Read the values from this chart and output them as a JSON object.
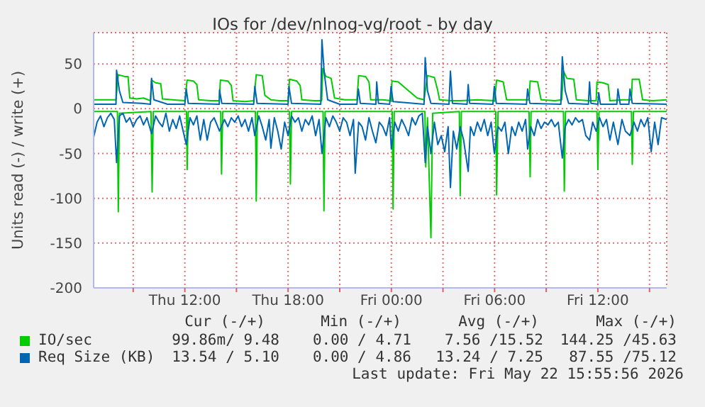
{
  "chart_data": {
    "type": "line",
    "title": "IOs for /dev/nlnog-vg/root - by day",
    "ylabel": "Units read (-) / write (+)",
    "xlim": [
      "2026-05-21T06:42",
      "2026-05-22T16:00"
    ],
    "xticks": [
      {
        "value": "2026-05-21T09:00",
        "label": null
      },
      {
        "value": "2026-05-21T12:00",
        "label": "Thu 12:00"
      },
      {
        "value": "2026-05-21T15:00",
        "label": null
      },
      {
        "value": "2026-05-21T18:00",
        "label": "Thu 18:00"
      },
      {
        "value": "2026-05-21T21:00",
        "label": null
      },
      {
        "value": "2026-05-22T00:00",
        "label": "Fri 00:00"
      },
      {
        "value": "2026-05-22T03:00",
        "label": null
      },
      {
        "value": "2026-05-22T06:00",
        "label": "Fri 06:00"
      },
      {
        "value": "2026-05-22T09:00",
        "label": null
      },
      {
        "value": "2026-05-22T12:00",
        "label": "Fri 12:00"
      },
      {
        "value": "2026-05-22T15:00",
        "label": null
      }
    ],
    "ylim": [
      -200,
      85
    ],
    "yticks": [
      -200,
      -150,
      -100,
      -50,
      0,
      50
    ],
    "grid": true,
    "legend": "bottom",
    "series": [
      {
        "name": "IO/sec",
        "color": "#00cc00",
        "x": [
          "2026-05-21T06:42",
          "2026-05-21T07:30",
          "2026-05-21T08:00",
          "2026-05-21T08:08",
          "2026-05-21T08:30",
          "2026-05-21T08:42",
          "2026-05-21T08:48",
          "2026-05-21T09:12",
          "2026-05-21T09:36",
          "2026-05-21T10:00",
          "2026-05-21T10:04",
          "2026-05-21T10:18",
          "2026-05-21T10:36",
          "2026-05-21T10:42",
          "2026-05-21T11:18",
          "2026-05-21T12:00",
          "2026-05-21T12:08",
          "2026-05-21T12:30",
          "2026-05-21T12:42",
          "2026-05-21T12:48",
          "2026-05-21T13:30",
          "2026-05-21T14:00",
          "2026-05-21T14:04",
          "2026-05-21T14:30",
          "2026-05-21T14:42",
          "2026-05-21T14:48",
          "2026-05-21T15:30",
          "2026-05-21T16:00",
          "2026-05-21T16:09",
          "2026-05-21T16:30",
          "2026-05-21T16:39",
          "2026-05-21T17:00",
          "2026-05-21T17:30",
          "2026-05-21T18:00",
          "2026-05-21T18:05",
          "2026-05-21T18:30",
          "2026-05-21T18:42",
          "2026-05-21T18:48",
          "2026-05-21T19:30",
          "2026-05-21T19:57",
          "2026-05-21T20:01",
          "2026-05-21T20:12",
          "2026-05-21T20:30",
          "2026-05-21T20:42",
          "2026-05-21T21:18",
          "2026-05-21T22:00",
          "2026-05-21T22:06",
          "2026-05-21T22:30",
          "2026-05-21T22:42",
          "2026-05-21T22:48",
          "2026-05-21T23:30",
          "2026-05-22T00:00",
          "2026-05-22T00:02",
          "2026-05-22T00:24",
          "2026-05-22T01:00",
          "2026-05-22T01:30",
          "2026-05-22T01:54",
          "2026-05-22T02:06",
          "2026-05-22T02:30",
          "2026-05-22T02:42",
          "2026-05-22T02:48",
          "2026-05-22T03:30",
          "2026-05-22T04:00",
          "2026-05-22T05:00",
          "2026-05-22T06:00",
          "2026-05-22T06:07",
          "2026-05-22T06:30",
          "2026-05-22T06:42",
          "2026-05-22T07:30",
          "2026-05-22T08:00",
          "2026-05-22T08:04",
          "2026-05-22T08:30",
          "2026-05-22T08:42",
          "2026-05-22T09:30",
          "2026-05-22T09:54",
          "2026-05-22T10:00",
          "2026-05-22T10:12",
          "2026-05-22T10:36",
          "2026-05-22T10:45",
          "2026-05-22T11:30",
          "2026-05-22T11:54",
          "2026-05-22T11:57",
          "2026-05-22T12:18",
          "2026-05-22T12:36",
          "2026-05-22T12:42",
          "2026-05-22T13:30",
          "2026-05-22T13:57",
          "2026-05-22T14:00",
          "2026-05-22T14:24",
          "2026-05-22T14:36",
          "2026-05-22T15:12",
          "2026-05-22T16:00"
        ],
        "values": [
          10,
          10,
          10,
          38,
          36,
          36,
          12,
          11,
          12,
          9,
          32,
          29,
          28,
          11,
          10,
          9,
          32,
          31,
          27,
          10,
          9,
          9,
          32,
          31,
          26,
          9,
          8,
          9,
          38,
          37,
          15,
          10,
          9,
          9,
          33,
          31,
          26,
          10,
          9,
          9,
          45,
          36,
          34,
          12,
          10,
          10,
          37,
          36,
          30,
          10,
          10,
          9,
          31,
          30,
          20,
          12,
          10,
          37,
          35,
          20,
          10,
          9,
          9,
          10,
          9,
          32,
          30,
          10,
          10,
          10,
          31,
          30,
          10,
          9,
          10,
          42,
          34,
          33,
          10,
          9,
          9,
          30,
          29,
          27,
          9,
          10,
          10,
          33,
          33,
          10,
          9,
          10
        ]
      },
      {
        "name": "Req Size (KB)",
        "color": "#0066b3",
        "x": [
          "2026-05-21T06:42",
          "2026-05-21T08:00",
          "2026-05-21T08:02",
          "2026-05-21T08:12",
          "2026-05-21T08:24",
          "2026-05-21T09:30",
          "2026-05-21T10:00",
          "2026-05-21T10:04",
          "2026-05-21T10:12",
          "2026-05-21T11:00",
          "2026-05-21T12:00",
          "2026-05-21T12:05",
          "2026-05-21T12:12",
          "2026-05-21T14:00",
          "2026-05-21T14:01",
          "2026-05-21T14:09",
          "2026-05-21T16:00",
          "2026-05-21T16:04",
          "2026-05-21T16:12",
          "2026-05-21T18:00",
          "2026-05-21T18:03",
          "2026-05-21T18:12",
          "2026-05-21T19:54",
          "2026-05-21T19:58",
          "2026-05-21T20:06",
          "2026-05-21T20:18",
          "2026-05-21T21:00",
          "2026-05-21T22:00",
          "2026-05-21T22:05",
          "2026-05-21T22:12",
          "2026-05-21T23:06",
          "2026-05-21T23:09",
          "2026-05-21T23:15",
          "2026-05-21T23:54",
          "2026-05-21T23:59",
          "2026-05-22T00:06",
          "2026-05-22T01:54",
          "2026-05-22T01:58",
          "2026-05-22T02:06",
          "2026-05-22T02:18",
          "2026-05-22T03:21",
          "2026-05-22T03:26",
          "2026-05-22T03:33",
          "2026-05-22T04:24",
          "2026-05-22T04:28",
          "2026-05-22T04:33",
          "2026-05-22T05:54",
          "2026-05-22T05:59",
          "2026-05-22T06:06",
          "2026-05-22T07:51",
          "2026-05-22T07:55",
          "2026-05-22T08:03",
          "2026-05-22T09:51",
          "2026-05-22T09:56",
          "2026-05-22T10:06",
          "2026-05-22T10:18",
          "2026-05-22T11:27",
          "2026-05-22T11:31",
          "2026-05-22T11:36",
          "2026-05-22T12:00",
          "2026-05-22T12:03",
          "2026-05-22T12:09",
          "2026-05-22T13:06",
          "2026-05-22T13:10",
          "2026-05-22T13:18",
          "2026-05-22T13:48",
          "2026-05-22T13:52",
          "2026-05-22T14:00",
          "2026-05-22T16:00"
        ],
        "values": [
          5,
          5,
          43,
          20,
          7,
          6,
          5,
          34,
          10,
          5,
          5,
          22,
          6,
          5,
          21,
          6,
          5,
          25,
          6,
          5,
          25,
          6,
          5,
          77,
          40,
          10,
          5,
          5,
          22,
          6,
          5,
          30,
          6,
          5,
          25,
          8,
          5,
          57,
          20,
          6,
          5,
          42,
          6,
          5,
          27,
          6,
          5,
          25,
          6,
          5,
          22,
          6,
          5,
          58,
          20,
          6,
          5,
          30,
          6,
          5,
          18,
          5,
          5,
          22,
          5,
          5,
          22,
          6,
          5
        ]
      },
      {
        "color": "#00cc00",
        "x": [
          "2026-05-21T06:42",
          "2026-05-21T08:05",
          "2026-05-21T08:08",
          "2026-05-21T08:12",
          "2026-05-21T10:02",
          "2026-05-21T10:06",
          "2026-05-21T10:10",
          "2026-05-21T12:06",
          "2026-05-21T12:08",
          "2026-05-21T12:12",
          "2026-05-21T14:05",
          "2026-05-21T14:08",
          "2026-05-21T14:12",
          "2026-05-21T16:06",
          "2026-05-21T16:09",
          "2026-05-21T16:13",
          "2026-05-21T18:05",
          "2026-05-21T18:08",
          "2026-05-21T18:12",
          "2026-05-21T20:02",
          "2026-05-21T20:05",
          "2026-05-21T20:09",
          "2026-05-22T00:03",
          "2026-05-22T00:06",
          "2026-05-22T00:10",
          "2026-05-22T01:57",
          "2026-05-22T02:00",
          "2026-05-22T02:06",
          "2026-05-22T02:18",
          "2026-05-22T02:24",
          "2026-05-22T03:57",
          "2026-05-22T04:00",
          "2026-05-22T04:04",
          "2026-05-22T06:04",
          "2026-05-22T06:07",
          "2026-05-22T06:12",
          "2026-05-22T08:00",
          "2026-05-22T08:04",
          "2026-05-22T08:07",
          "2026-05-22T10:00",
          "2026-05-22T10:03",
          "2026-05-22T10:07",
          "2026-05-22T11:57",
          "2026-05-22T12:00",
          "2026-05-22T12:04",
          "2026-05-22T13:57",
          "2026-05-22T14:00",
          "2026-05-22T14:04",
          "2026-05-22T16:00"
        ],
        "values": [
          -3,
          -3,
          -115,
          -5,
          -3,
          -93,
          -3,
          -3,
          -68,
          -3,
          -3,
          -73,
          -3,
          -3,
          -103,
          -3,
          -3,
          -84,
          -3,
          -3,
          -114,
          -3,
          -3,
          -112,
          -3,
          -3,
          -65,
          -10,
          -144,
          -5,
          -3,
          -97,
          -3,
          -3,
          -96,
          -3,
          -3,
          -76,
          -3,
          -3,
          -92,
          -3,
          -3,
          -68,
          -3,
          -3,
          -62,
          -3,
          -3
        ]
      },
      {
        "color": "#0066b3",
        "x": [
          "2026-05-21T06:42",
          "2026-05-21T06:54",
          "2026-05-21T07:06",
          "2026-05-21T07:18",
          "2026-05-21T07:30",
          "2026-05-21T07:42",
          "2026-05-21T07:54",
          "2026-05-21T08:02",
          "2026-05-21T08:12",
          "2026-05-21T08:24",
          "2026-05-21T08:36",
          "2026-05-21T08:48",
          "2026-05-21T09:00",
          "2026-05-21T09:12",
          "2026-05-21T09:24",
          "2026-05-21T09:36",
          "2026-05-21T09:48",
          "2026-05-21T10:04",
          "2026-05-21T10:18",
          "2026-05-21T10:30",
          "2026-05-21T10:42",
          "2026-05-21T10:54",
          "2026-05-21T11:06",
          "2026-05-21T11:18",
          "2026-05-21T11:30",
          "2026-05-21T11:42",
          "2026-05-21T12:05",
          "2026-05-21T12:18",
          "2026-05-21T12:30",
          "2026-05-21T12:42",
          "2026-05-21T12:54",
          "2026-05-21T13:06",
          "2026-05-21T13:18",
          "2026-05-21T13:30",
          "2026-05-21T13:42",
          "2026-05-21T14:01",
          "2026-05-21T14:18",
          "2026-05-21T14:30",
          "2026-05-21T14:42",
          "2026-05-21T14:54",
          "2026-05-21T15:06",
          "2026-05-21T15:18",
          "2026-05-21T15:30",
          "2026-05-21T15:42",
          "2026-05-21T15:54",
          "2026-05-21T16:04",
          "2026-05-21T16:18",
          "2026-05-21T16:30",
          "2026-05-21T16:42",
          "2026-05-21T16:54",
          "2026-05-21T17:00",
          "2026-05-21T17:12",
          "2026-05-21T17:24",
          "2026-05-21T17:36",
          "2026-05-21T17:48",
          "2026-05-21T18:00",
          "2026-05-21T18:12",
          "2026-05-21T18:24",
          "2026-05-21T18:36",
          "2026-05-21T18:48",
          "2026-05-21T19:00",
          "2026-05-21T19:12",
          "2026-05-21T19:24",
          "2026-05-21T19:36",
          "2026-05-21T19:48",
          "2026-05-21T19:58",
          "2026-05-21T20:12",
          "2026-05-21T20:24",
          "2026-05-21T20:36",
          "2026-05-21T20:48",
          "2026-05-21T21:00",
          "2026-05-21T21:12",
          "2026-05-21T21:24",
          "2026-05-21T21:36",
          "2026-05-21T21:48",
          "2026-05-21T21:54",
          "2026-05-21T22:06",
          "2026-05-21T22:18",
          "2026-05-21T22:30",
          "2026-05-21T22:42",
          "2026-05-21T22:54",
          "2026-05-21T23:06",
          "2026-05-21T23:18",
          "2026-05-21T23:30",
          "2026-05-21T23:42",
          "2026-05-21T23:54",
          "2026-05-22T00:00",
          "2026-05-22T00:12",
          "2026-05-22T00:24",
          "2026-05-22T00:36",
          "2026-05-22T00:48",
          "2026-05-22T01:00",
          "2026-05-22T01:12",
          "2026-05-22T01:24",
          "2026-05-22T01:36",
          "2026-05-22T01:48",
          "2026-05-22T01:58",
          "2026-05-22T02:06",
          "2026-05-22T02:18",
          "2026-05-22T02:30",
          "2026-05-22T02:42",
          "2026-05-22T02:54",
          "2026-05-22T03:06",
          "2026-05-22T03:18",
          "2026-05-22T03:26",
          "2026-05-22T03:36",
          "2026-05-22T03:48",
          "2026-05-22T04:00",
          "2026-05-22T04:12",
          "2026-05-22T04:28",
          "2026-05-22T04:36",
          "2026-05-22T04:48",
          "2026-05-22T05:00",
          "2026-05-22T05:12",
          "2026-05-22T05:24",
          "2026-05-22T05:36",
          "2026-05-22T05:48",
          "2026-05-22T05:59",
          "2026-05-22T06:12",
          "2026-05-22T06:24",
          "2026-05-22T06:36",
          "2026-05-22T06:48",
          "2026-05-22T07:00",
          "2026-05-22T07:12",
          "2026-05-22T07:24",
          "2026-05-22T07:36",
          "2026-05-22T07:48",
          "2026-05-22T07:55",
          "2026-05-22T08:06",
          "2026-05-22T08:18",
          "2026-05-22T08:30",
          "2026-05-22T08:42",
          "2026-05-22T08:54",
          "2026-05-22T09:06",
          "2026-05-22T09:18",
          "2026-05-22T09:30",
          "2026-05-22T09:42",
          "2026-05-22T09:56",
          "2026-05-22T10:06",
          "2026-05-22T10:18",
          "2026-05-22T10:30",
          "2026-05-22T10:42",
          "2026-05-22T10:54",
          "2026-05-22T11:06",
          "2026-05-22T11:18",
          "2026-05-22T11:31",
          "2026-05-22T11:42",
          "2026-05-22T11:54",
          "2026-05-22T12:06",
          "2026-05-22T12:18",
          "2026-05-22T12:30",
          "2026-05-22T12:42",
          "2026-05-22T12:54",
          "2026-05-22T13:10",
          "2026-05-22T13:24",
          "2026-05-22T13:36",
          "2026-05-22T13:52",
          "2026-05-22T14:06",
          "2026-05-22T14:18",
          "2026-05-22T14:30",
          "2026-05-22T14:42",
          "2026-05-22T14:54",
          "2026-05-22T15:06",
          "2026-05-22T15:18",
          "2026-05-22T15:30",
          "2026-05-22T15:42",
          "2026-05-22T16:00"
        ],
        "values": [
          -32,
          -15,
          -8,
          -20,
          -10,
          -5,
          -12,
          -60,
          -8,
          -5,
          -15,
          -10,
          -20,
          -12,
          -8,
          -18,
          -10,
          -28,
          -8,
          -15,
          -20,
          -5,
          -25,
          -12,
          -22,
          -8,
          -40,
          -10,
          -18,
          -8,
          -35,
          -12,
          -35,
          -15,
          -10,
          -25,
          -12,
          -20,
          -10,
          -15,
          -8,
          -20,
          -12,
          -25,
          -10,
          -30,
          -8,
          -20,
          -35,
          -12,
          -44,
          -10,
          -25,
          -45,
          -15,
          -30,
          -8,
          -15,
          -10,
          -25,
          -12,
          -18,
          -8,
          -30,
          -12,
          -50,
          -10,
          -20,
          -8,
          -15,
          -25,
          -10,
          -15,
          -30,
          -12,
          -72,
          -15,
          -20,
          -35,
          -10,
          -25,
          -38,
          -15,
          -20,
          -30,
          -10,
          -45,
          -15,
          -25,
          -12,
          -20,
          -30,
          -10,
          -18,
          -8,
          -5,
          -60,
          -20,
          -50,
          -15,
          -40,
          -30,
          -48,
          -20,
          -88,
          -25,
          -45,
          -20,
          -35,
          -70,
          -20,
          -30,
          -15,
          -25,
          -12,
          -30,
          -15,
          -50,
          -20,
          -25,
          -15,
          -50,
          -20,
          -30,
          -15,
          -25,
          -12,
          -45,
          -20,
          -30,
          -12,
          -22,
          -15,
          -18,
          -12,
          -20,
          -15,
          -55,
          -20,
          -12,
          -18,
          -10,
          -15,
          -12,
          -30,
          -35,
          -15,
          -25,
          -10,
          -20,
          -12,
          -35,
          -15,
          -40,
          -12,
          -25,
          -30,
          -15,
          -25,
          -12,
          -20,
          -10,
          -48,
          -15,
          -40,
          -10,
          -12
        ]
      }
    ],
    "annotations": [
      "Cur (-/+)",
      "Min (-/+)",
      "Avg (-/+)",
      "Max (-/+)",
      "99.86m/ 9.48",
      "0.00 / 4.71",
      "7.56 /15.52",
      "144.25 /45.63",
      "13.54 / 5.10",
      "0.00 / 4.86",
      "13.24 / 7.25",
      "87.55 /75.12",
      "Last update: Fri May 22 15:55:56 2026"
    ]
  }
}
